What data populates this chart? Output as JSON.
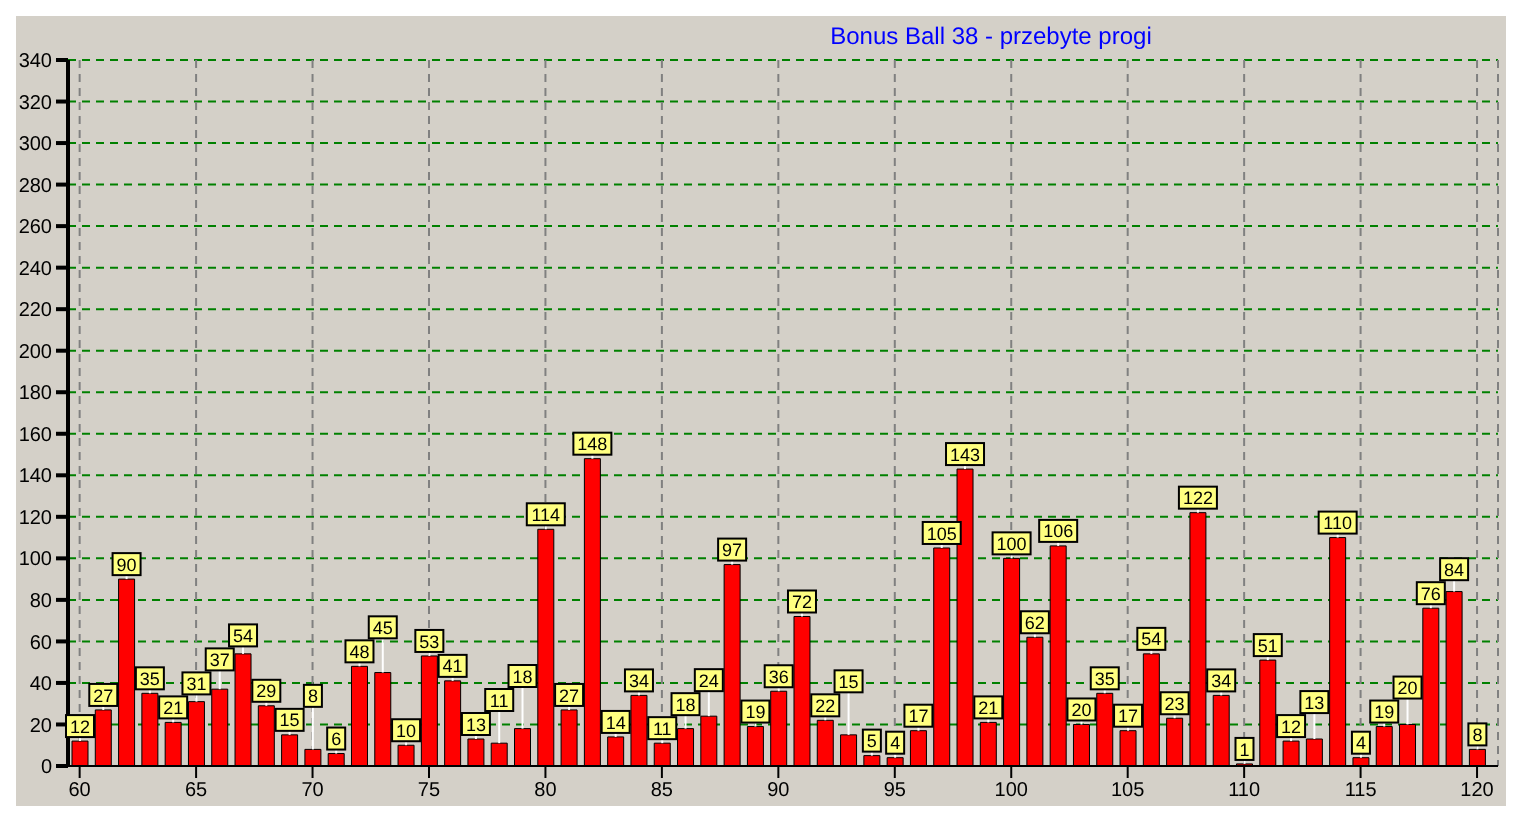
{
  "chart_data": {
    "type": "bar",
    "title": "Bonus Ball 38 - przebyte progi",
    "x": [
      60,
      61,
      62,
      63,
      64,
      65,
      66,
      67,
      68,
      69,
      70,
      71,
      72,
      73,
      74,
      75,
      76,
      77,
      78,
      79,
      80,
      81,
      82,
      83,
      84,
      85,
      86,
      87,
      88,
      89,
      90,
      91,
      92,
      93,
      94,
      95,
      96,
      97,
      98,
      99,
      100,
      101,
      102,
      103,
      104,
      105,
      106,
      107,
      108,
      109,
      110,
      111,
      112,
      113,
      114,
      115,
      116,
      117,
      118,
      119,
      120
    ],
    "values": [
      12,
      27,
      90,
      35,
      21,
      31,
      37,
      54,
      29,
      15,
      8,
      6,
      48,
      45,
      10,
      53,
      41,
      13,
      11,
      18,
      114,
      27,
      148,
      14,
      34,
      11,
      18,
      24,
      97,
      19,
      36,
      72,
      22,
      15,
      5,
      4,
      17,
      105,
      143,
      21,
      100,
      62,
      106,
      20,
      35,
      17,
      54,
      23,
      122,
      34,
      1,
      51,
      12,
      13,
      110,
      4,
      19,
      20,
      76,
      84,
      8
    ],
    "color": "#ff0000",
    "data_labels": true,
    "xlim": [
      59.5,
      120.9
    ],
    "xticks": [
      60,
      65,
      70,
      75,
      80,
      85,
      90,
      95,
      100,
      105,
      110,
      115,
      120
    ],
    "ylim": [
      0,
      340
    ],
    "yticks": [
      0,
      20,
      40,
      60,
      80,
      100,
      120,
      140,
      160,
      180,
      200,
      220,
      240,
      260,
      280,
      300,
      320,
      340
    ],
    "grid": true,
    "legend": false
  }
}
